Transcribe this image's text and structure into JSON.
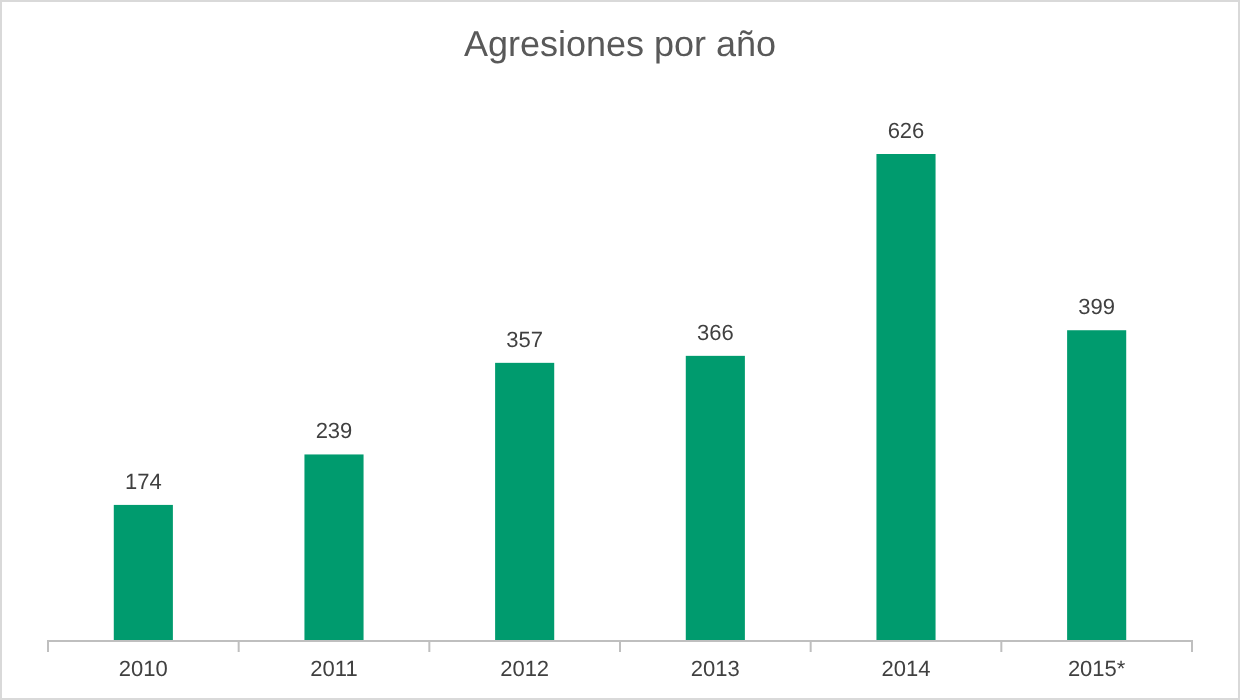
{
  "chart_data": {
    "type": "bar",
    "title": "Agresiones por año",
    "categories": [
      "2010",
      "2011",
      "2012",
      "2013",
      "2014",
      "2015*"
    ],
    "values": [
      174,
      239,
      357,
      366,
      626,
      399
    ],
    "color": "#009b6e",
    "data_labels": true
  }
}
